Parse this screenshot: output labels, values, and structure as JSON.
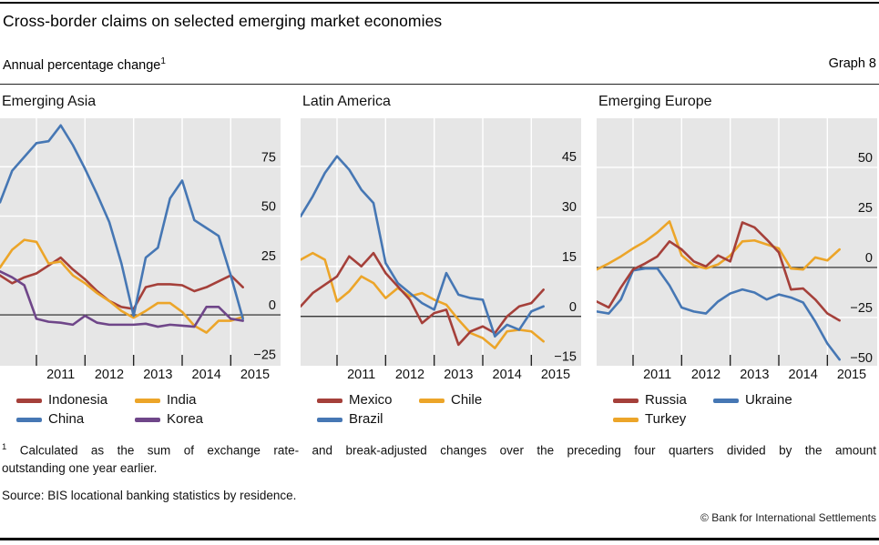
{
  "header": {
    "title": "Cross-border claims on selected emerging market economies",
    "subtitle": "Annual percentage change",
    "subtitle_superscript": "1",
    "graph_label": "Graph 8"
  },
  "footnote": {
    "marker": "1",
    "line1": "Calculated as the sum of exchange rate- and break-adjusted changes over the preceding four quarters divided by the amount",
    "line2": "outstanding one year earlier."
  },
  "source": "Source: BIS locational banking statistics by residence.",
  "copyright": "© Bank for International Settlements",
  "colors": {
    "red": "#a5403a",
    "orange": "#eca529",
    "blue": "#4677b4",
    "purple": "#6f4689",
    "plot_bg": "#e6e6e6",
    "gridline": "#ffffff",
    "axis": "#222222"
  },
  "chart_data": [
    {
      "type": "line",
      "title": "Emerging Asia",
      "x_quarters": [
        "2010 Q1",
        "2010 Q2",
        "2010 Q3",
        "2010 Q4",
        "2011 Q1",
        "2011 Q2",
        "2011 Q3",
        "2011 Q4",
        "2012 Q1",
        "2012 Q2",
        "2012 Q3",
        "2012 Q4",
        "2013 Q1",
        "2013 Q2",
        "2013 Q3",
        "2013 Q4",
        "2014 Q1",
        "2014 Q2",
        "2014 Q3",
        "2014 Q4",
        "2015 Q1"
      ],
      "xlabel_ticks": [
        "2011",
        "2012",
        "2013",
        "2014",
        "2015"
      ],
      "ylabel": "Annual percentage change",
      "y_ticks": [
        75,
        50,
        25,
        0,
        -25
      ],
      "ylim": [
        -25.8,
        99.6
      ],
      "grid": true,
      "legend_position": "below",
      "legend_rows": [
        [
          "Indonesia",
          "India"
        ],
        [
          "China",
          "Korea"
        ]
      ],
      "series": [
        {
          "name": "Indonesia",
          "color": "#a5403a",
          "values": [
            20,
            16,
            19,
            21,
            25,
            29,
            23,
            18,
            12,
            7,
            4,
            3,
            14,
            15.5,
            15.5,
            15,
            12,
            14,
            17,
            20,
            14
          ]
        },
        {
          "name": "India",
          "color": "#eca529",
          "values": [
            24,
            33,
            38,
            37,
            26,
            27,
            20,
            16,
            11,
            7,
            2,
            -1.5,
            2,
            6,
            6,
            1.5,
            -5.5,
            -9,
            -3,
            -3,
            -1
          ]
        },
        {
          "name": "Korea",
          "color": "#6f4689",
          "values": [
            22,
            19,
            15,
            -2,
            -3.5,
            -4,
            -5,
            -0.5,
            -4,
            -5,
            -5,
            -5,
            -4.5,
            -6,
            -5,
            -5.5,
            -6,
            4,
            4,
            -2,
            -3
          ]
        },
        {
          "name": "China",
          "color": "#4677b4",
          "values": [
            57,
            73,
            80,
            87,
            88,
            96,
            86,
            74,
            61,
            47,
            26,
            -0.5,
            29,
            34,
            59,
            68,
            48,
            44,
            40,
            20,
            -2
          ]
        }
      ]
    },
    {
      "type": "line",
      "title": "Latin America",
      "x_quarters": [
        "2010 Q1",
        "2010 Q2",
        "2010 Q3",
        "2010 Q4",
        "2011 Q1",
        "2011 Q2",
        "2011 Q3",
        "2011 Q4",
        "2012 Q1",
        "2012 Q2",
        "2012 Q3",
        "2012 Q4",
        "2013 Q1",
        "2013 Q2",
        "2013 Q3",
        "2013 Q4",
        "2014 Q1",
        "2014 Q2",
        "2014 Q3",
        "2014 Q4",
        "2015 Q1"
      ],
      "xlabel_ticks": [
        "2011",
        "2012",
        "2013",
        "2014",
        "2015"
      ],
      "ylabel": "Annual percentage change",
      "y_ticks": [
        45,
        30,
        15,
        0,
        -15
      ],
      "ylim": [
        -14.8,
        59.4
      ],
      "grid": true,
      "legend_position": "below",
      "legend_rows": [
        [
          "Mexico",
          "Chile"
        ],
        [
          "Brazil"
        ]
      ],
      "series": [
        {
          "name": "Chile",
          "color": "#eca529",
          "values": [
            17,
            19,
            17,
            4.5,
            7.5,
            12,
            10,
            5.5,
            8.5,
            6,
            7,
            5,
            3.5,
            -1,
            -5,
            -6.5,
            -9.5,
            -4.5,
            -4,
            -4.5,
            -7.5
          ]
        },
        {
          "name": "Mexico",
          "color": "#a5403a",
          "values": [
            3,
            7,
            9.5,
            12,
            18,
            15,
            19,
            13,
            9,
            5,
            -2,
            1,
            2,
            -8.5,
            -4.5,
            -3,
            -5,
            0,
            3,
            4,
            8
          ]
        },
        {
          "name": "Brazil",
          "color": "#4677b4",
          "values": [
            30,
            36,
            43,
            48,
            44,
            38,
            34,
            16,
            10,
            7,
            4,
            2,
            13,
            6.5,
            5.5,
            5,
            -6,
            -2.5,
            -4,
            1.5,
            3
          ]
        }
      ]
    },
    {
      "type": "line",
      "title": "Emerging Europe",
      "x_quarters": [
        "2010 Q1",
        "2010 Q2",
        "2010 Q3",
        "2010 Q4",
        "2011 Q1",
        "2011 Q2",
        "2011 Q3",
        "2011 Q4",
        "2012 Q1",
        "2012 Q2",
        "2012 Q3",
        "2012 Q4",
        "2013 Q1",
        "2013 Q2",
        "2013 Q3",
        "2013 Q4",
        "2014 Q1",
        "2014 Q2",
        "2014 Q3",
        "2014 Q4",
        "2015 Q1"
      ],
      "xlabel_ticks": [
        "2011",
        "2012",
        "2013",
        "2014",
        "2015"
      ],
      "ylabel": "Annual percentage change",
      "y_ticks": [
        50,
        25,
        0,
        -25,
        -50
      ],
      "ylim": [
        -49.1,
        74.5
      ],
      "grid": true,
      "legend_position": "below",
      "legend_rows": [
        [
          "Russia",
          "Ukraine"
        ],
        [
          "Turkey"
        ]
      ],
      "series": [
        {
          "name": "Turkey",
          "color": "#eca529",
          "values": [
            -1,
            2,
            5.5,
            9.5,
            13,
            17.5,
            23,
            6,
            1,
            -0.5,
            1.5,
            6,
            13,
            13.5,
            11.5,
            9.5,
            -0.5,
            -1,
            5,
            3.5,
            9
          ]
        },
        {
          "name": "Ukraine",
          "color": "#4677b4",
          "values": [
            -22,
            -23,
            -16,
            -1.5,
            -0.5,
            -0.5,
            -9,
            -20,
            -22,
            -23,
            -17,
            -13,
            -11,
            -12.5,
            -16,
            -13.5,
            -15,
            -17.5,
            -27,
            -38,
            -46
          ]
        },
        {
          "name": "Russia",
          "color": "#a5403a",
          "values": [
            -17,
            -20,
            -10,
            -1,
            2,
            5.5,
            13,
            9,
            3,
            0.5,
            6,
            3,
            22.5,
            20,
            14,
            7.5,
            -11,
            -10.5,
            -16,
            -23,
            -26.5
          ]
        }
      ]
    }
  ]
}
